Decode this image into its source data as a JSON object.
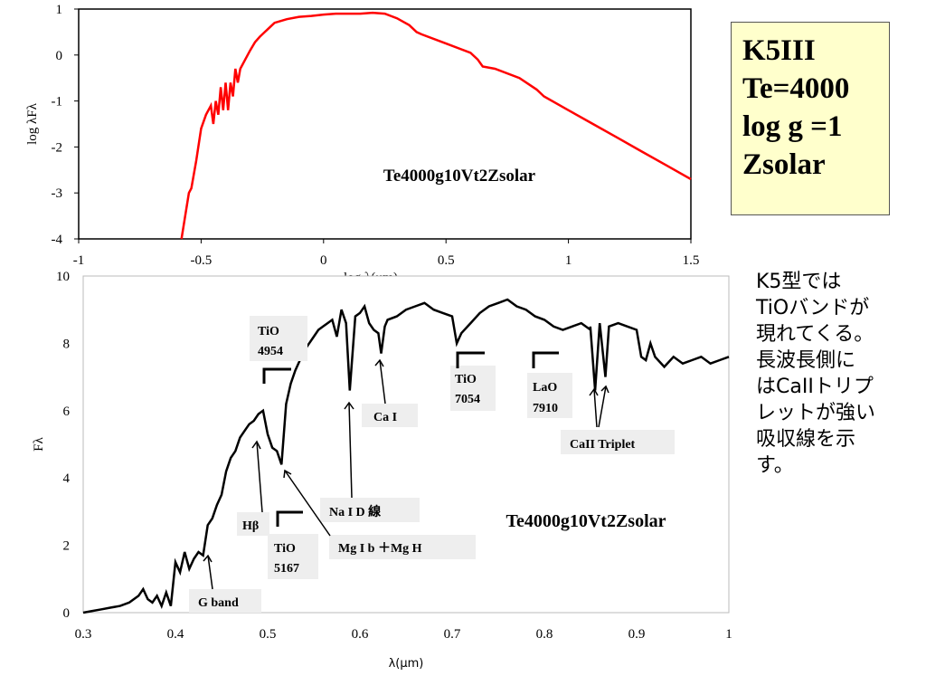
{
  "chart_data": [
    {
      "type": "line",
      "title": "Te4000g10Vt2Zsolar",
      "xlabel": "log λ(μm)",
      "ylabel": "log λFλ",
      "xlim": [
        -1,
        1.5
      ],
      "ylim": [
        -4,
        1
      ],
      "x_ticks": [
        "-1",
        "-0.5",
        "0",
        "0.5",
        "1",
        "1.5"
      ],
      "y_ticks": [
        "1",
        "0",
        "-1",
        "-2",
        "-3",
        "-4"
      ],
      "color": "#ff0000",
      "grid": false,
      "series": [
        {
          "x": [
            -0.58,
            -0.565,
            -0.55,
            -0.54,
            -0.52,
            -0.5,
            -0.48,
            -0.46,
            -0.45,
            -0.44,
            -0.43,
            -0.42,
            -0.41,
            -0.4,
            -0.39,
            -0.38,
            -0.37,
            -0.36,
            -0.35,
            -0.34,
            -0.33,
            -0.32,
            -0.3,
            -0.28,
            -0.26,
            -0.24,
            -0.22,
            -0.2,
            -0.15,
            -0.1,
            -0.05,
            0.0,
            0.05,
            0.1,
            0.15,
            0.2,
            0.25,
            0.3,
            0.35,
            0.38,
            0.4,
            0.5,
            0.6,
            0.63,
            0.65,
            0.7,
            0.8,
            0.87,
            0.9,
            1.0,
            1.1,
            1.2,
            1.3,
            1.4,
            1.5
          ],
          "y": [
            -4.0,
            -3.5,
            -3.0,
            -2.9,
            -2.3,
            -1.6,
            -1.3,
            -1.1,
            -1.5,
            -1.0,
            -1.3,
            -0.7,
            -1.2,
            -0.6,
            -1.2,
            -0.6,
            -0.9,
            -0.3,
            -0.6,
            -0.3,
            -0.2,
            -0.1,
            0.1,
            0.28,
            0.4,
            0.5,
            0.6,
            0.7,
            0.78,
            0.83,
            0.85,
            0.88,
            0.9,
            0.9,
            0.9,
            0.92,
            0.9,
            0.8,
            0.65,
            0.5,
            0.45,
            0.25,
            0.05,
            -0.1,
            -0.25,
            -0.3,
            -0.5,
            -0.75,
            -0.9,
            -1.2,
            -1.5,
            -1.8,
            -2.1,
            -2.4,
            -2.7
          ]
        }
      ]
    },
    {
      "type": "line",
      "title": "Te4000g10Vt2Zsolar",
      "xlabel": "λ(μm)",
      "ylabel": "Fλ",
      "xlim": [
        0.3,
        1.0
      ],
      "ylim": [
        0,
        10
      ],
      "x_ticks": [
        "0.3",
        "0.4",
        "0.5",
        "0.6",
        "0.7",
        "0.8",
        "0.9",
        "1"
      ],
      "y_ticks": [
        "0",
        "2",
        "4",
        "6",
        "8",
        "10"
      ],
      "color": "#000000",
      "grid": false,
      "series": [
        {
          "x": [
            0.3,
            0.31,
            0.32,
            0.33,
            0.34,
            0.35,
            0.36,
            0.365,
            0.37,
            0.375,
            0.38,
            0.385,
            0.39,
            0.395,
            0.4,
            0.405,
            0.41,
            0.415,
            0.42,
            0.425,
            0.43,
            0.435,
            0.44,
            0.445,
            0.45,
            0.455,
            0.46,
            0.465,
            0.47,
            0.475,
            0.48,
            0.485,
            0.49,
            0.495,
            0.5,
            0.505,
            0.51,
            0.515,
            0.52,
            0.525,
            0.53,
            0.535,
            0.54,
            0.545,
            0.55,
            0.555,
            0.56,
            0.565,
            0.57,
            0.575,
            0.58,
            0.585,
            0.589,
            0.595,
            0.6,
            0.605,
            0.61,
            0.615,
            0.62,
            0.623,
            0.627,
            0.63,
            0.64,
            0.65,
            0.66,
            0.67,
            0.68,
            0.69,
            0.7,
            0.705,
            0.71,
            0.72,
            0.73,
            0.74,
            0.75,
            0.76,
            0.77,
            0.78,
            0.79,
            0.8,
            0.81,
            0.82,
            0.83,
            0.84,
            0.85,
            0.8498,
            0.855,
            0.86,
            0.8662,
            0.87,
            0.88,
            0.89,
            0.9,
            0.905,
            0.91,
            0.915,
            0.92,
            0.93,
            0.94,
            0.95,
            0.96,
            0.97,
            0.98,
            0.99,
            1.0
          ],
          "y": [
            0.0,
            0.05,
            0.1,
            0.15,
            0.2,
            0.3,
            0.5,
            0.7,
            0.4,
            0.3,
            0.5,
            0.2,
            0.6,
            0.2,
            1.5,
            1.2,
            1.8,
            1.3,
            1.6,
            1.8,
            1.7,
            2.6,
            2.8,
            3.2,
            3.5,
            4.2,
            4.6,
            4.8,
            5.2,
            5.4,
            5.6,
            5.7,
            5.9,
            6.0,
            5.3,
            4.9,
            4.8,
            4.4,
            6.2,
            6.8,
            7.2,
            7.5,
            7.8,
            8.0,
            8.2,
            8.4,
            8.5,
            8.6,
            8.7,
            8.2,
            9.0,
            8.6,
            6.6,
            8.8,
            8.9,
            9.1,
            8.6,
            8.4,
            8.3,
            7.7,
            8.5,
            8.7,
            8.8,
            9.0,
            9.1,
            9.2,
            9.0,
            8.9,
            8.8,
            8.0,
            8.3,
            8.6,
            8.9,
            9.1,
            9.2,
            9.3,
            9.1,
            9.0,
            8.8,
            8.7,
            8.5,
            8.4,
            8.5,
            8.6,
            8.4,
            8.5,
            6.6,
            8.6,
            7.0,
            8.5,
            8.6,
            8.5,
            8.4,
            7.6,
            7.5,
            8.0,
            7.6,
            7.3,
            7.6,
            7.4,
            7.5,
            7.6,
            7.4,
            7.5,
            7.6
          ]
        }
      ],
      "annotations": [
        {
          "id": "tio4954",
          "lines": [
            "TiO",
            "4954"
          ]
        },
        {
          "id": "cai",
          "lines": [
            "Ca I"
          ]
        },
        {
          "id": "tio7054",
          "lines": [
            "TiO",
            "7054"
          ]
        },
        {
          "id": "lao7910",
          "lines": [
            "LaO",
            "7910"
          ]
        },
        {
          "id": "caii",
          "lines": [
            "CaII Triplet"
          ]
        },
        {
          "id": "nai",
          "lines": [
            "Na I D 線"
          ]
        },
        {
          "id": "hbeta",
          "lines": [
            "Hβ"
          ]
        },
        {
          "id": "tio5167",
          "lines": [
            "TiO",
            "5167"
          ]
        },
        {
          "id": "mgib",
          "lines": [
            "Mg I b ＋Mg H"
          ]
        },
        {
          "id": "gband",
          "lines": [
            "G band"
          ]
        }
      ]
    }
  ],
  "infobox": {
    "lines": [
      "K5III",
      "Te=4000",
      "log g =1",
      "Zsolar"
    ]
  },
  "note": {
    "lines": [
      "K5型では",
      "TiOバンドが",
      "現れてくる。",
      "長波長側に",
      "はCaIIトリプ",
      "レットが強い",
      "吸収線を示",
      "す。"
    ]
  }
}
